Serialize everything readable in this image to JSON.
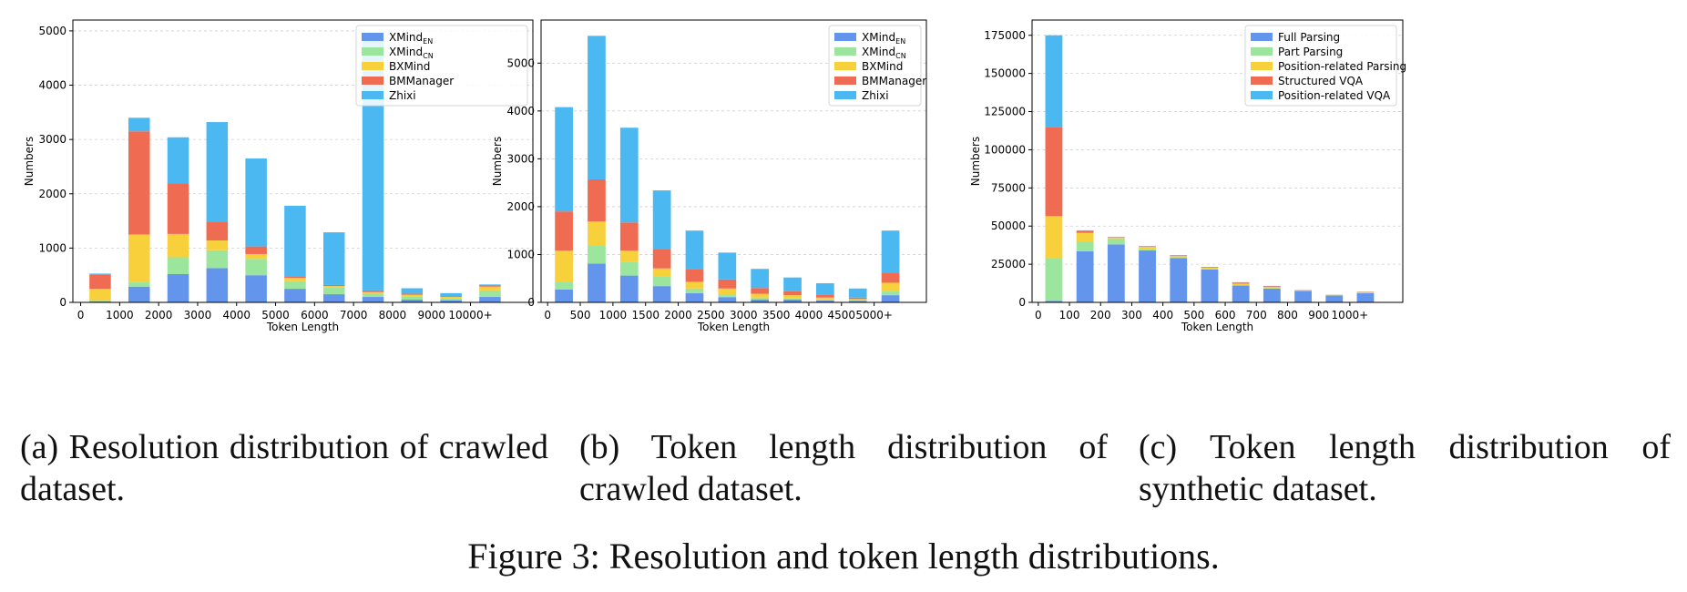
{
  "chart_data": [
    {
      "type": "bar",
      "stacked": true,
      "ylabel": "Numbers",
      "xlabel": "Token Length",
      "x_tick_values": [
        0,
        1000,
        2000,
        3000,
        4000,
        5000,
        6000,
        7000,
        8000,
        9000,
        10000
      ],
      "x_tick_labels": [
        "0",
        "1000",
        "2000",
        "3000",
        "4000",
        "5000",
        "6000",
        "7000",
        "8000",
        "9000",
        "10000+"
      ],
      "x_range": [
        -200,
        11600
      ],
      "ylim": [
        0,
        5200
      ],
      "y_ticks": [
        0,
        1000,
        2000,
        3000,
        4000,
        5000
      ],
      "bar_centers": [
        500,
        1500,
        2500,
        3500,
        4500,
        5500,
        6500,
        7500,
        8500,
        9500,
        10500
      ],
      "series": [
        {
          "name": "XMind",
          "subscript": "EN",
          "color": "#6495ED",
          "values": [
            20,
            290,
            520,
            630,
            500,
            250,
            150,
            100,
            50,
            40,
            100
          ]
        },
        {
          "name": "XMind",
          "subscript": "CN",
          "color": "#9CE59C",
          "values": [
            10,
            90,
            310,
            330,
            300,
            140,
            120,
            60,
            60,
            40,
            120
          ]
        },
        {
          "name": "BXMind",
          "color": "#F7D03C",
          "values": [
            220,
            870,
            430,
            180,
            90,
            60,
            30,
            30,
            30,
            20,
            70
          ]
        },
        {
          "name": "BMManager",
          "color": "#EF6B51",
          "values": [
            260,
            1900,
            930,
            350,
            140,
            30,
            20,
            30,
            20,
            10,
            20
          ]
        },
        {
          "name": "Zhixi",
          "color": "#4CB8F2",
          "values": [
            20,
            250,
            850,
            1830,
            1620,
            1300,
            970,
            4690,
            100,
            60,
            20
          ]
        }
      ],
      "legend_position": "top-right",
      "grid": "y"
    },
    {
      "type": "bar",
      "stacked": true,
      "ylabel": "Numbers",
      "xlabel": "Token Length",
      "x_tick_values": [
        0,
        500,
        1000,
        1500,
        2000,
        2500,
        3000,
        3500,
        4000,
        4500,
        5000
      ],
      "x_tick_labels": [
        "0",
        "500",
        "1000",
        "1500",
        "2000",
        "2500",
        "3000",
        "3500",
        "4000",
        "4500",
        "5000+"
      ],
      "x_range": [
        -100,
        5800
      ],
      "ylim": [
        0,
        5900
      ],
      "y_ticks": [
        0,
        1000,
        2000,
        3000,
        4000,
        5000
      ],
      "bar_centers": [
        250,
        750,
        1250,
        1750,
        2250,
        2750,
        3250,
        3750,
        4250,
        4750,
        5250
      ],
      "series": [
        {
          "name": "XMind",
          "subscript": "EN",
          "color": "#6495ED",
          "values": [
            270,
            810,
            560,
            340,
            190,
            110,
            60,
            60,
            40,
            30,
            150
          ]
        },
        {
          "name": "XMind",
          "subscript": "CN",
          "color": "#9CE59C",
          "values": [
            160,
            380,
            290,
            200,
            100,
            60,
            40,
            30,
            20,
            20,
            80
          ]
        },
        {
          "name": "BXMind",
          "color": "#F7D03C",
          "values": [
            650,
            500,
            230,
            170,
            140,
            120,
            80,
            60,
            40,
            20,
            180
          ]
        },
        {
          "name": "BMManager",
          "color": "#EF6B51",
          "values": [
            820,
            880,
            590,
            410,
            270,
            190,
            120,
            80,
            60,
            30,
            210
          ]
        },
        {
          "name": "Zhixi",
          "color": "#4CB8F2",
          "values": [
            2180,
            3000,
            1980,
            1220,
            800,
            560,
            400,
            290,
            240,
            190,
            880
          ]
        }
      ],
      "legend_position": "top-right",
      "grid": "y"
    },
    {
      "type": "bar",
      "stacked": true,
      "ylabel": "Numbers",
      "xlabel": "Token Length",
      "x_tick_values": [
        0,
        100,
        200,
        300,
        400,
        500,
        600,
        700,
        800,
        900,
        1000
      ],
      "x_tick_labels": [
        "0",
        "100",
        "200",
        "300",
        "400",
        "500",
        "600",
        "700",
        "800",
        "900",
        "1000+"
      ],
      "x_range": [
        -20,
        1170
      ],
      "ylim": [
        0,
        185000
      ],
      "y_ticks": [
        0,
        25000,
        50000,
        75000,
        100000,
        125000,
        150000,
        175000
      ],
      "bar_centers": [
        50,
        150,
        250,
        350,
        450,
        550,
        650,
        750,
        850,
        950,
        1050
      ],
      "series": [
        {
          "name": "Full Parsing",
          "color": "#6495ED",
          "values": [
            1000,
            33500,
            38000,
            34000,
            29000,
            21500,
            11000,
            9000,
            7500,
            4500,
            6000
          ]
        },
        {
          "name": "Part Parsing",
          "color": "#9CE59C",
          "values": [
            28000,
            6500,
            3500,
            1000,
            500,
            500,
            300,
            300,
            100,
            100,
            200
          ]
        },
        {
          "name": "Position-related Parsing",
          "color": "#F7D03C",
          "values": [
            27500,
            5500,
            1000,
            1500,
            1000,
            700,
            1000,
            800,
            200,
            200,
            600
          ]
        },
        {
          "name": "Structured VQA",
          "color": "#EF6B51",
          "values": [
            58500,
            1500,
            300,
            300,
            300,
            300,
            700,
            500,
            200,
            100,
            200
          ]
        },
        {
          "name": "Position-related VQA",
          "color": "#4CB8F2",
          "values": [
            60000,
            200,
            200,
            200,
            200,
            200,
            200,
            200,
            100,
            100,
            100
          ]
        }
      ],
      "legend_position": "top-right",
      "grid": "y"
    }
  ],
  "captions": {
    "a": "(a) Resolution distribution of crawled dataset.",
    "b": "(b) Token length distribution of crawled dataset.",
    "c": "(c) Token length distribution of synthetic dataset.",
    "figure": "Figure 3: Resolution and token length distributions."
  }
}
